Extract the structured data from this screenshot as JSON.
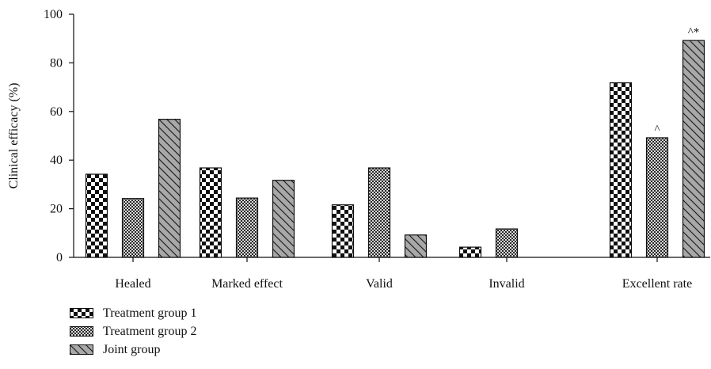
{
  "chart_data": {
    "type": "bar",
    "title": "",
    "xlabel": "",
    "ylabel": "Clinical efficacy (%)",
    "ylim": [
      0,
      100
    ],
    "yticks": [
      0,
      20,
      40,
      60,
      80,
      100
    ],
    "categories": [
      "Healed",
      "Marked effect",
      "Valid",
      "Invalid",
      "Excellent rate"
    ],
    "series": [
      {
        "name": "Treatment group 1",
        "pattern": "checker",
        "values": [
          34.2,
          36.8,
          21.6,
          4.2,
          71.8
        ]
      },
      {
        "name": "Treatment group 2",
        "pattern": "dots",
        "values": [
          24.2,
          24.4,
          36.8,
          11.7,
          49.2
        ]
      },
      {
        "name": "Joint group",
        "pattern": "diagonal",
        "values": [
          56.8,
          31.7,
          9.2,
          0,
          89.2
        ]
      }
    ],
    "annotations": [
      {
        "category": "Excellent rate",
        "series": "Treatment group 2",
        "text": "^"
      },
      {
        "category": "Excellent rate",
        "series": "Joint group",
        "text": "^*"
      }
    ],
    "grid": false,
    "legend_position": "bottom-left"
  },
  "legend": {
    "items": [
      {
        "label": "Treatment group 1",
        "pattern": "checker"
      },
      {
        "label": "Treatment group 2",
        "pattern": "dots"
      },
      {
        "label": "Joint group",
        "pattern": "diagonal"
      }
    ]
  }
}
